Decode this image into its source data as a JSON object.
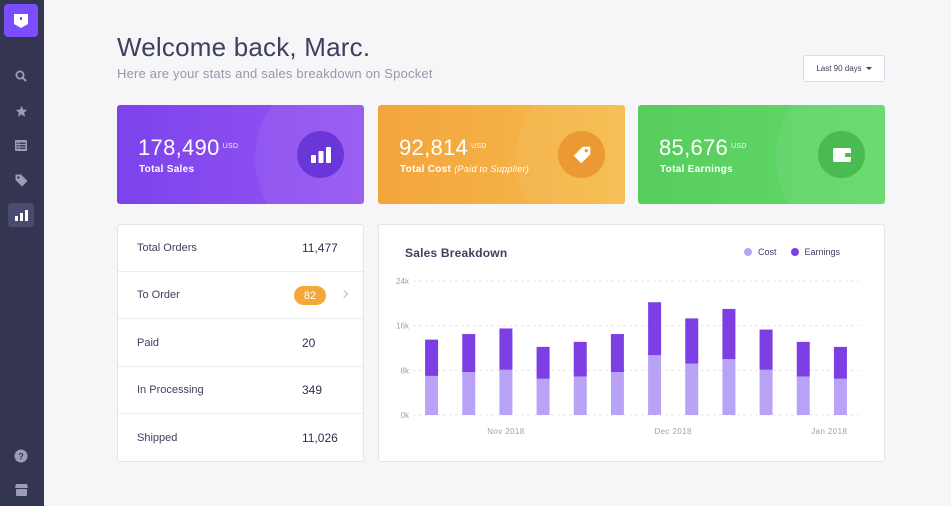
{
  "colors": {
    "sidebar": "#333551",
    "accent": "#7c4dff",
    "cost": "#b9a3f7",
    "earnings": "#7d3fe3"
  },
  "sidebar": {
    "items": [
      {
        "icon": "search-icon"
      },
      {
        "icon": "star-icon"
      },
      {
        "icon": "list-icon"
      },
      {
        "icon": "tag-icon"
      },
      {
        "icon": "bar-chart-icon",
        "active": true
      }
    ],
    "bottom": [
      {
        "icon": "help-icon"
      },
      {
        "icon": "store-icon"
      }
    ]
  },
  "header": {
    "title": "Welcome back, Marc.",
    "subtitle": "Here are your stats and sales breakdown on Spocket",
    "range": "Last 90 days"
  },
  "stats": [
    {
      "value": "178,490",
      "unit": "USD",
      "label": "Total Sales",
      "note": "",
      "icon": "bar-chart-icon"
    },
    {
      "value": "92,814",
      "unit": "USD",
      "label": "Total Cost",
      "note": "(Paid to Supplier)",
      "icon": "tag-icon"
    },
    {
      "value": "85,676",
      "unit": "USD",
      "label": "Total Earnings",
      "note": "",
      "icon": "wallet-icon"
    }
  ],
  "orders": [
    {
      "label": "Total Orders",
      "value": "11,477"
    },
    {
      "label": "To Order",
      "value": "82"
    },
    {
      "label": "Paid",
      "value": "20"
    },
    {
      "label": "In Processing",
      "value": "349"
    },
    {
      "label": "Shipped",
      "value": "11,026"
    }
  ],
  "chart_data": {
    "type": "bar",
    "stacked": true,
    "title": "Sales Breakdown",
    "ylim": [
      0,
      24000
    ],
    "yticks": [
      0,
      8000,
      16000,
      24000
    ],
    "ytick_labels": [
      "0k",
      "8k",
      "16k",
      "24k"
    ],
    "xtick_labels": [
      "Nov 2018",
      "Dec 2018",
      "Jan 2018"
    ],
    "grid": true,
    "legend": "top-right",
    "series": [
      {
        "name": "Cost",
        "color": "#b9a3f7",
        "values": [
          7000,
          7700,
          8100,
          6500,
          6900,
          7700,
          10700,
          9200,
          10000,
          8100,
          6900,
          6500
        ]
      },
      {
        "name": "Earnings",
        "color": "#7d3fe3",
        "values": [
          6500,
          6800,
          7400,
          5700,
          6200,
          6800,
          9500,
          8100,
          9000,
          7200,
          6200,
          5700
        ]
      }
    ]
  }
}
